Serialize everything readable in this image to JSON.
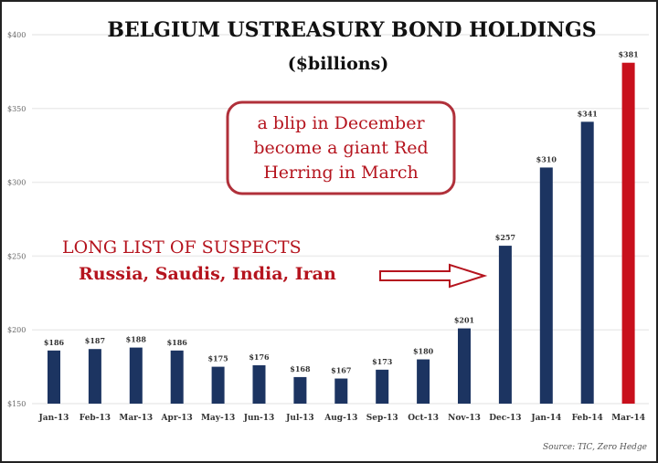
{
  "chart_data": {
    "type": "bar",
    "title": "BELGIUM USTREASURY BOND  HOLDINGS",
    "subtitle": "($billions)",
    "categories": [
      "Jan-13",
      "Feb-13",
      "Mar-13",
      "Apr-13",
      "May-13",
      "Jun-13",
      "Jul-13",
      "Aug-13",
      "Sep-13",
      "Oct-13",
      "Nov-13",
      "Dec-13",
      "Jan-14",
      "Feb-14",
      "Mar-14"
    ],
    "values": [
      186,
      187,
      188,
      186,
      175,
      176,
      168,
      167,
      173,
      180,
      201,
      257,
      310,
      341,
      381
    ],
    "data_labels": [
      "$186",
      "$187",
      "$188",
      "$186",
      "$175",
      "$176",
      "$168",
      "$167",
      "$173",
      "$180",
      "$201",
      "$257",
      "$310",
      "$341",
      "$381"
    ],
    "ylim": [
      150,
      400
    ],
    "yticks": [
      150,
      200,
      250,
      300,
      350,
      400
    ],
    "ytick_labels": [
      "$150",
      "$200",
      "$250",
      "$300",
      "$350",
      "$400"
    ],
    "grid": true,
    "colors": {
      "bar": "#1c3461",
      "highlight": "#c8101c",
      "annotation": "#b5141e",
      "box_border": "#b0303a"
    },
    "highlight_index": 14,
    "annotations": {
      "callout_lines": [
        "a blip in December",
        "become a giant Red",
        "Herring in March"
      ],
      "suspects_title": "LONG LIST OF SUSPECTS",
      "suspects_list": "Russia, Saudis, India, Iran"
    },
    "source": "Source: TIC, Zero Hedge"
  }
}
